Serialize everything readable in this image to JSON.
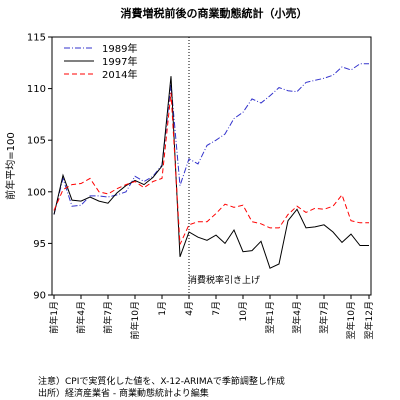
{
  "chart_data": {
    "type": "line",
    "title": "消費増税前後の商業動態統計（小売）",
    "ylabel": "前年平均=100",
    "ylim": [
      90,
      115
    ],
    "yticks": [
      90,
      95,
      100,
      105,
      110,
      115
    ],
    "grid": false,
    "legend_position": "top-left",
    "categories": [
      "前年1月",
      "前年2月",
      "前年3月",
      "前年4月",
      "前年5月",
      "前年6月",
      "前年7月",
      "前年8月",
      "前年9月",
      "前年10月",
      "前年11月",
      "前年12月",
      "1月",
      "2月",
      "3月",
      "4月",
      "5月",
      "6月",
      "7月",
      "8月",
      "9月",
      "10月",
      "11月",
      "12月",
      "翌年1月",
      "翌年2月",
      "翌年3月",
      "翌年4月",
      "翌年5月",
      "翌年6月",
      "翌年7月",
      "翌年8月",
      "翌年9月",
      "翌年10月",
      "翌年11月",
      "翌年12月"
    ],
    "x_tick_labels": [
      "前年1月",
      "前年4月",
      "前年7月",
      "前年10月",
      "1月",
      "4月",
      "7月",
      "10月",
      "翌年1月",
      "翌年4月",
      "翌年7月",
      "翌年10月",
      "翌年12月"
    ],
    "x_tick_indices": [
      0,
      3,
      6,
      9,
      12,
      15,
      18,
      21,
      24,
      27,
      30,
      33,
      35
    ],
    "series": [
      {
        "name": "1989年",
        "color": "#3333cc",
        "dash": "dashdot",
        "values": [
          97.8,
          101.3,
          98.6,
          98.7,
          99.6,
          99.6,
          99.5,
          99.7,
          100.0,
          101.5,
          101.0,
          101.5,
          102.6,
          110.4,
          100.6,
          103.2,
          102.7,
          104.5,
          105.0,
          105.6,
          107.1,
          107.7,
          109.0,
          108.6,
          109.3,
          110.1,
          109.8,
          109.7,
          110.6,
          110.8,
          111.0,
          111.3,
          112.1,
          111.8,
          112.4,
          112.4
        ]
      },
      {
        "name": "1997年",
        "color": "#000000",
        "dash": "solid",
        "values": [
          97.8,
          101.6,
          99.2,
          99.1,
          99.5,
          99.1,
          98.9,
          99.9,
          100.6,
          101.1,
          100.7,
          101.4,
          102.5,
          111.2,
          93.7,
          96.1,
          95.6,
          95.3,
          95.8,
          95.0,
          96.3,
          94.2,
          94.3,
          95.2,
          92.6,
          93.0,
          97.2,
          98.3,
          96.5,
          96.6,
          96.8,
          96.1,
          95.1,
          95.9,
          94.8,
          94.8
        ]
      },
      {
        "name": "2014年",
        "color": "#ff0000",
        "dash": "dashed",
        "values": [
          98.2,
          100.2,
          100.7,
          100.8,
          101.3,
          100.0,
          99.8,
          100.3,
          100.7,
          101.0,
          100.4,
          101.0,
          101.3,
          109.6,
          94.9,
          96.8,
          97.1,
          97.1,
          97.9,
          98.8,
          98.5,
          98.7,
          97.1,
          96.9,
          96.5,
          96.5,
          97.8,
          98.6,
          98.0,
          98.4,
          98.3,
          98.6,
          99.7,
          97.2,
          97.0,
          97.0
        ]
      }
    ],
    "annotation": {
      "text": "消費税率引き上げ",
      "x_category": "4月",
      "line_style": "dotted"
    }
  },
  "notes": {
    "note1": "注意）CPIで実質化した値を、X-12-ARIMAで季節調整し作成",
    "note2": "出所）経済産業省 - 商業動態統計より編集"
  }
}
